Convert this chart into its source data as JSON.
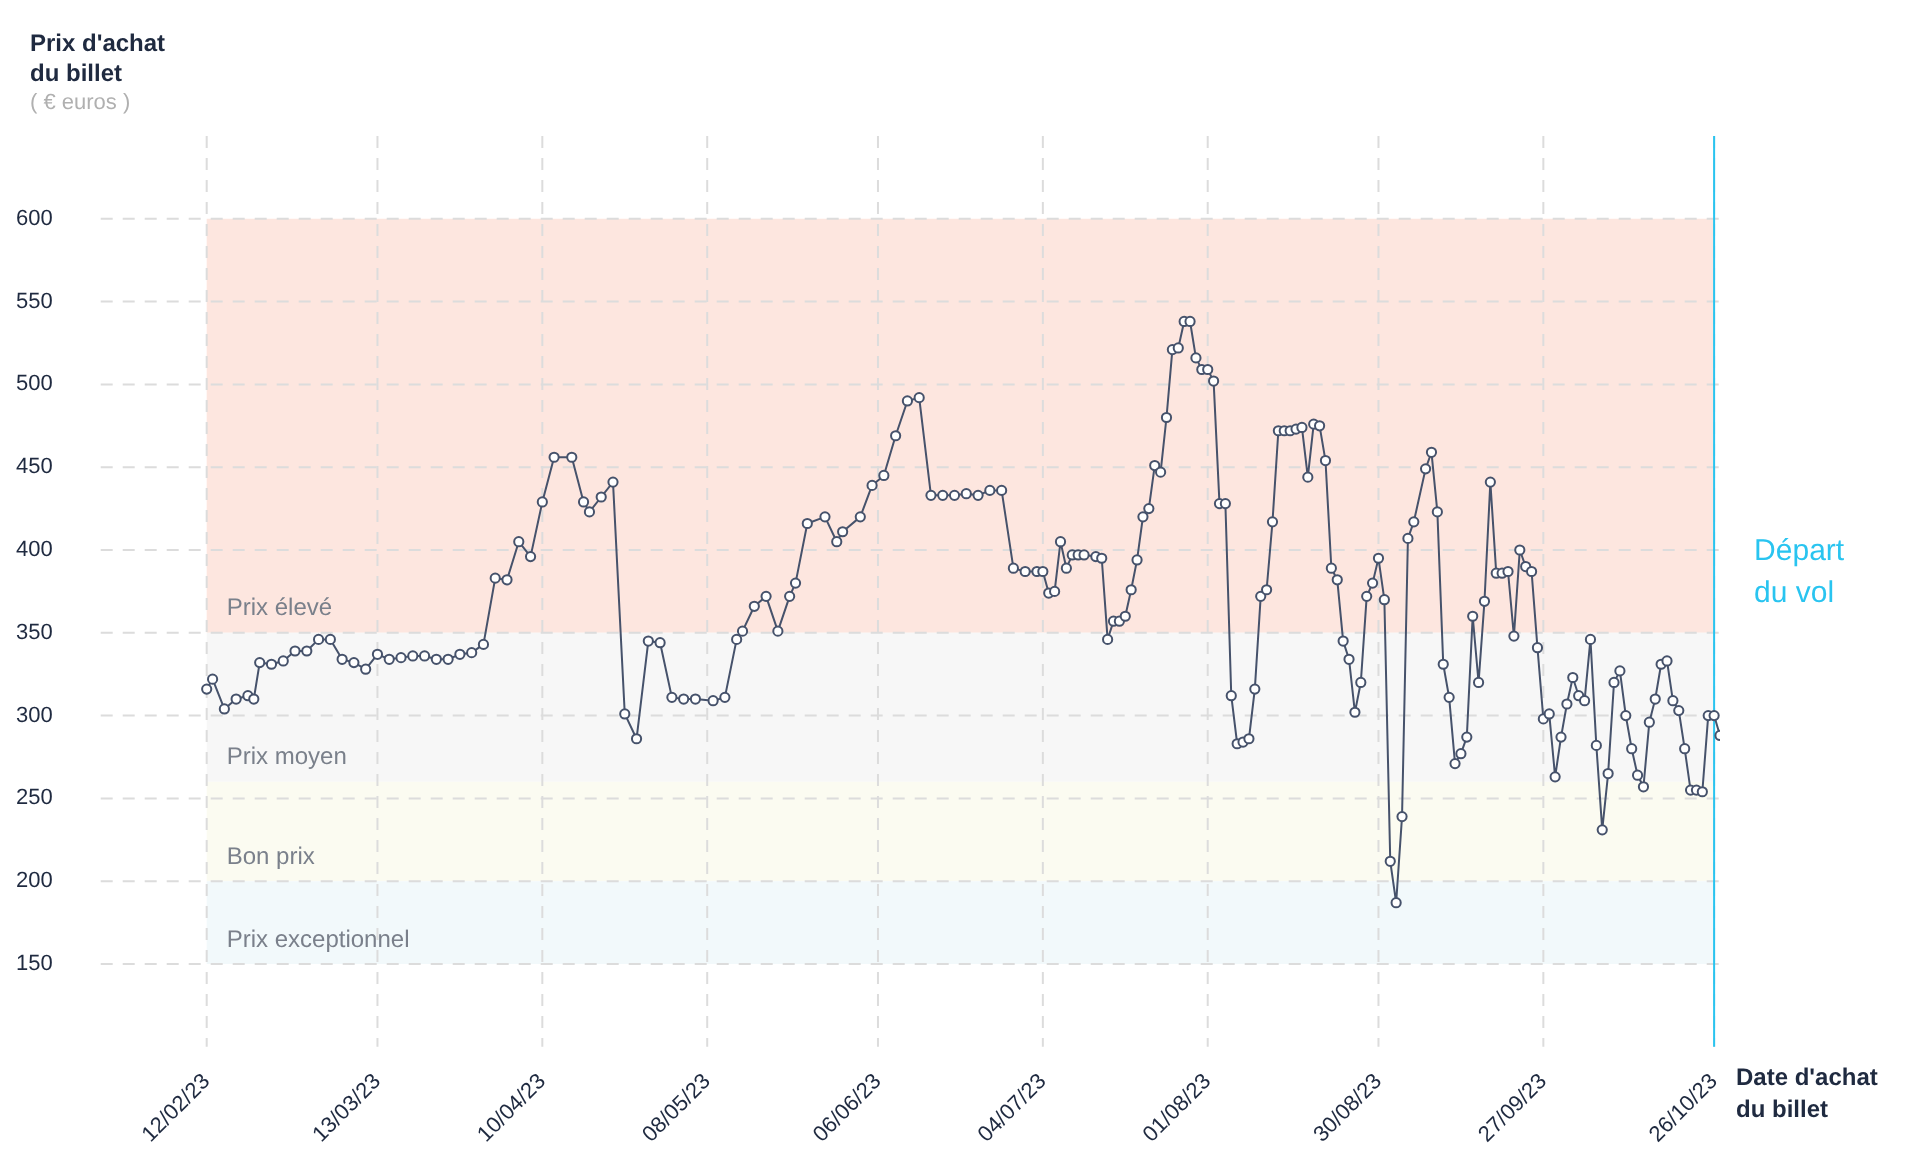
{
  "chart_data": {
    "type": "line",
    "ylabel": "Prix d'achat du billet",
    "xlabel": "Date d'achat du billet",
    "annotations": [
      "( € euros )"
    ],
    "marker": "circle",
    "line_style": "solid",
    "grid": true,
    "xlim": [
      "2023-01-25",
      "2023-10-27"
    ],
    "xticks": [
      {
        "value": "2023-02-12",
        "label": "12/02/23"
      },
      {
        "value": "2023-03-13",
        "label": "13/03/23"
      },
      {
        "value": "2023-04-10",
        "label": "10/04/23"
      },
      {
        "value": "2023-05-08",
        "label": "08/05/23"
      },
      {
        "value": "2023-06-06",
        "label": "06/06/23"
      },
      {
        "value": "2023-07-04",
        "label": "04/07/23"
      },
      {
        "value": "2023-08-01",
        "label": "01/08/23"
      },
      {
        "value": "2023-08-30",
        "label": "30/08/23"
      },
      {
        "value": "2023-09-27",
        "label": "27/09/23"
      },
      {
        "value": "2023-10-26",
        "label": "26/10/23"
      }
    ],
    "ylim": [
      100,
      650
    ],
    "yticks": [
      150,
      200,
      250,
      300,
      350,
      400,
      450,
      500,
      550,
      600
    ],
    "bands": [
      {
        "axis": "y",
        "from": 350,
        "to": 600,
        "label": "Prix élevé",
        "color": "#fde6df"
      },
      {
        "axis": "y",
        "from": 260,
        "to": 350,
        "label": "Prix moyen",
        "color": "#f7f7f7"
      },
      {
        "axis": "y",
        "from": 200,
        "to": 260,
        "label": "Bon prix",
        "color": "#fbfbf1"
      },
      {
        "axis": "y",
        "from": 150,
        "to": 200,
        "label": "Prix exceptionnel",
        "color": "#f2f9fb"
      }
    ],
    "ref_lines": [
      {
        "axis": "x",
        "value": "2023-10-26",
        "label": "Départ du vol",
        "color": "#29c4f0"
      }
    ],
    "series": [
      {
        "color": "#46526b",
        "x": [
          "2023-02-12",
          "2023-02-13",
          "2023-02-15",
          "2023-02-17",
          "2023-02-19",
          "2023-02-20",
          "2023-02-21",
          "2023-02-23",
          "2023-02-25",
          "2023-02-27",
          "2023-03-01",
          "2023-03-03",
          "2023-03-05",
          "2023-03-07",
          "2023-03-09",
          "2023-03-11",
          "2023-03-13",
          "2023-03-15",
          "2023-03-17",
          "2023-03-19",
          "2023-03-21",
          "2023-03-23",
          "2023-03-25",
          "2023-03-27",
          "2023-03-29",
          "2023-03-31",
          "2023-04-02",
          "2023-04-04",
          "2023-04-06",
          "2023-04-08",
          "2023-04-10",
          "2023-04-12",
          "2023-04-15",
          "2023-04-17",
          "2023-04-18",
          "2023-04-20",
          "2023-04-22",
          "2023-04-24",
          "2023-04-26",
          "2023-04-28",
          "2023-04-30",
          "2023-05-02",
          "2023-05-04",
          "2023-05-06",
          "2023-05-09",
          "2023-05-11",
          "2023-05-13",
          "2023-05-14",
          "2023-05-16",
          "2023-05-18",
          "2023-05-20",
          "2023-05-22",
          "2023-05-23",
          "2023-05-25",
          "2023-05-28",
          "2023-05-30",
          "2023-05-31",
          "2023-06-03",
          "2023-06-05",
          "2023-06-07",
          "2023-06-09",
          "2023-06-11",
          "2023-06-13",
          "2023-06-15",
          "2023-06-17",
          "2023-06-19",
          "2023-06-21",
          "2023-06-23",
          "2023-06-25",
          "2023-06-27",
          "2023-06-29",
          "2023-07-01",
          "2023-07-03",
          "2023-07-04",
          "2023-07-05",
          "2023-07-06",
          "2023-07-07",
          "2023-07-08",
          "2023-07-09",
          "2023-07-10",
          "2023-07-11",
          "2023-07-13",
          "2023-07-14",
          "2023-07-15",
          "2023-07-16",
          "2023-07-17",
          "2023-07-18",
          "2023-07-19",
          "2023-07-20",
          "2023-07-21",
          "2023-07-22",
          "2023-07-23",
          "2023-07-24",
          "2023-07-25",
          "2023-07-26",
          "2023-07-27",
          "2023-07-28",
          "2023-07-29",
          "2023-07-30",
          "2023-07-31",
          "2023-08-01",
          "2023-08-02",
          "2023-08-03",
          "2023-08-04",
          "2023-08-05",
          "2023-08-06",
          "2023-08-07",
          "2023-08-08",
          "2023-08-09",
          "2023-08-10",
          "2023-08-11",
          "2023-08-12",
          "2023-08-13",
          "2023-08-14",
          "2023-08-15",
          "2023-08-16",
          "2023-08-17",
          "2023-08-18",
          "2023-08-19",
          "2023-08-20",
          "2023-08-21",
          "2023-08-22",
          "2023-08-23",
          "2023-08-24",
          "2023-08-25",
          "2023-08-26",
          "2023-08-27",
          "2023-08-28",
          "2023-08-29",
          "2023-08-30",
          "2023-08-31",
          "2023-09-01",
          "2023-09-02",
          "2023-09-03",
          "2023-09-04",
          "2023-09-05",
          "2023-09-07",
          "2023-09-08",
          "2023-09-09",
          "2023-09-10",
          "2023-09-11",
          "2023-09-12",
          "2023-09-13",
          "2023-09-14",
          "2023-09-15",
          "2023-09-16",
          "2023-09-17",
          "2023-09-18",
          "2023-09-19",
          "2023-09-20",
          "2023-09-21",
          "2023-09-22",
          "2023-09-23",
          "2023-09-24",
          "2023-09-25",
          "2023-09-26",
          "2023-09-27",
          "2023-09-28",
          "2023-09-29",
          "2023-09-30",
          "2023-10-01",
          "2023-10-02",
          "2023-10-03",
          "2023-10-04",
          "2023-10-05",
          "2023-10-06",
          "2023-10-07",
          "2023-10-08",
          "2023-10-09",
          "2023-10-10",
          "2023-10-11",
          "2023-10-12",
          "2023-10-13",
          "2023-10-14",
          "2023-10-15",
          "2023-10-16",
          "2023-10-17",
          "2023-10-18",
          "2023-10-19",
          "2023-10-20",
          "2023-10-21",
          "2023-10-22",
          "2023-10-23",
          "2023-10-24",
          "2023-10-25",
          "2023-10-26",
          "2023-10-27"
        ],
        "values": [
          316,
          322,
          304,
          310,
          312,
          310,
          332,
          331,
          333,
          339,
          339,
          346,
          346,
          334,
          332,
          328,
          337,
          334,
          335,
          336,
          336,
          334,
          334,
          337,
          338,
          343,
          383,
          382,
          405,
          396,
          429,
          456,
          456,
          429,
          423,
          432,
          441,
          301,
          286,
          345,
          344,
          311,
          310,
          310,
          309,
          311,
          346,
          351,
          366,
          372,
          351,
          372,
          380,
          416,
          420,
          405,
          411,
          420,
          439,
          445,
          469,
          490,
          492,
          433,
          433,
          433,
          434,
          433,
          436,
          436,
          389,
          387,
          387,
          387,
          374,
          375,
          405,
          389,
          397,
          397,
          397,
          396,
          395,
          346,
          357,
          357,
          360,
          376,
          394,
          420,
          425,
          451,
          447,
          480,
          521,
          522,
          538,
          538,
          516,
          509,
          509,
          502,
          428,
          428,
          312,
          283,
          284,
          286,
          316,
          372,
          376,
          417,
          472,
          472,
          472,
          473,
          474,
          444,
          476,
          475,
          454,
          389,
          382,
          345,
          334,
          302,
          320,
          372,
          380,
          395,
          370,
          212,
          187,
          239,
          407,
          417,
          449,
          459,
          423,
          331,
          311,
          271,
          277,
          287,
          360,
          320,
          369,
          441,
          386,
          386,
          387,
          348,
          400,
          390,
          387,
          341,
          298,
          301,
          263,
          287,
          307,
          323,
          312,
          309,
          346,
          282,
          231,
          265,
          320,
          327,
          300,
          280,
          264,
          257,
          296,
          310,
          331,
          333,
          309,
          303,
          280,
          255,
          255,
          254,
          300,
          300,
          288
        ]
      }
    ]
  }
}
